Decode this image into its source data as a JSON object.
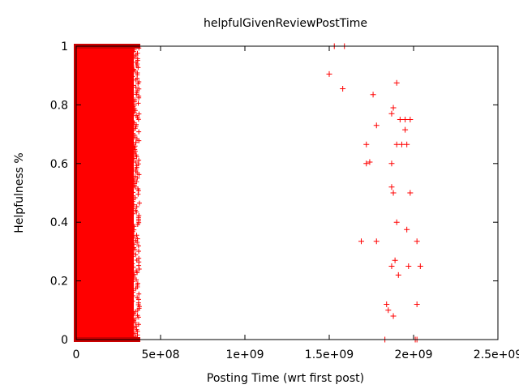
{
  "chart_data": {
    "type": "scatter",
    "title": "helpfulGivenReviewPostTime",
    "xlabel": "Posting Time (wrt first post)",
    "ylabel": "Helpfulness %",
    "xlim": [
      0,
      2500000000
    ],
    "ylim": [
      0,
      1
    ],
    "xticks": [
      0,
      500000000,
      1000000000,
      1500000000,
      2000000000,
      2500000000
    ],
    "xtick_labels": [
      "0",
      "5e+08",
      "1e+09",
      "1.5e+09",
      "2e+09",
      "2.5e+09"
    ],
    "yticks": [
      0,
      0.2,
      0.4,
      0.6,
      0.8,
      1
    ],
    "ytick_labels": [
      "0",
      "0.2",
      "0.4",
      "0.6",
      "0.8",
      "1"
    ],
    "grid": false,
    "legend": "none",
    "marker": "+",
    "color": "#ff0000",
    "dense_region": {
      "x_range": [
        0,
        370000000
      ],
      "y_range": [
        0,
        1
      ]
    },
    "points": [
      [
        1530000000,
        1.0
      ],
      [
        1590000000,
        1.0
      ],
      [
        1500000000,
        0.905
      ],
      [
        1580000000,
        0.855
      ],
      [
        1900000000,
        0.875
      ],
      [
        1760000000,
        0.835
      ],
      [
        1880000000,
        0.79
      ],
      [
        1870000000,
        0.77
      ],
      [
        1920000000,
        0.75
      ],
      [
        1950000000,
        0.75
      ],
      [
        1980000000,
        0.75
      ],
      [
        1780000000,
        0.73
      ],
      [
        1950000000,
        0.715
      ],
      [
        1720000000,
        0.665
      ],
      [
        1900000000,
        0.665
      ],
      [
        1930000000,
        0.665
      ],
      [
        1960000000,
        0.665
      ],
      [
        1740000000,
        0.605
      ],
      [
        1720000000,
        0.6
      ],
      [
        1870000000,
        0.6
      ],
      [
        1870000000,
        0.52
      ],
      [
        1880000000,
        0.5
      ],
      [
        1980000000,
        0.5
      ],
      [
        1900000000,
        0.4
      ],
      [
        1960000000,
        0.375
      ],
      [
        1690000000,
        0.335
      ],
      [
        1780000000,
        0.335
      ],
      [
        2020000000,
        0.335
      ],
      [
        1890000000,
        0.27
      ],
      [
        1870000000,
        0.25
      ],
      [
        1970000000,
        0.25
      ],
      [
        2040000000,
        0.25
      ],
      [
        1910000000,
        0.22
      ],
      [
        1840000000,
        0.12
      ],
      [
        2020000000,
        0.12
      ],
      [
        1850000000,
        0.1
      ],
      [
        1880000000,
        0.08
      ],
      [
        1830000000,
        0.0
      ],
      [
        2010000000,
        0.0
      ],
      [
        2020000000,
        0.0
      ]
    ]
  }
}
